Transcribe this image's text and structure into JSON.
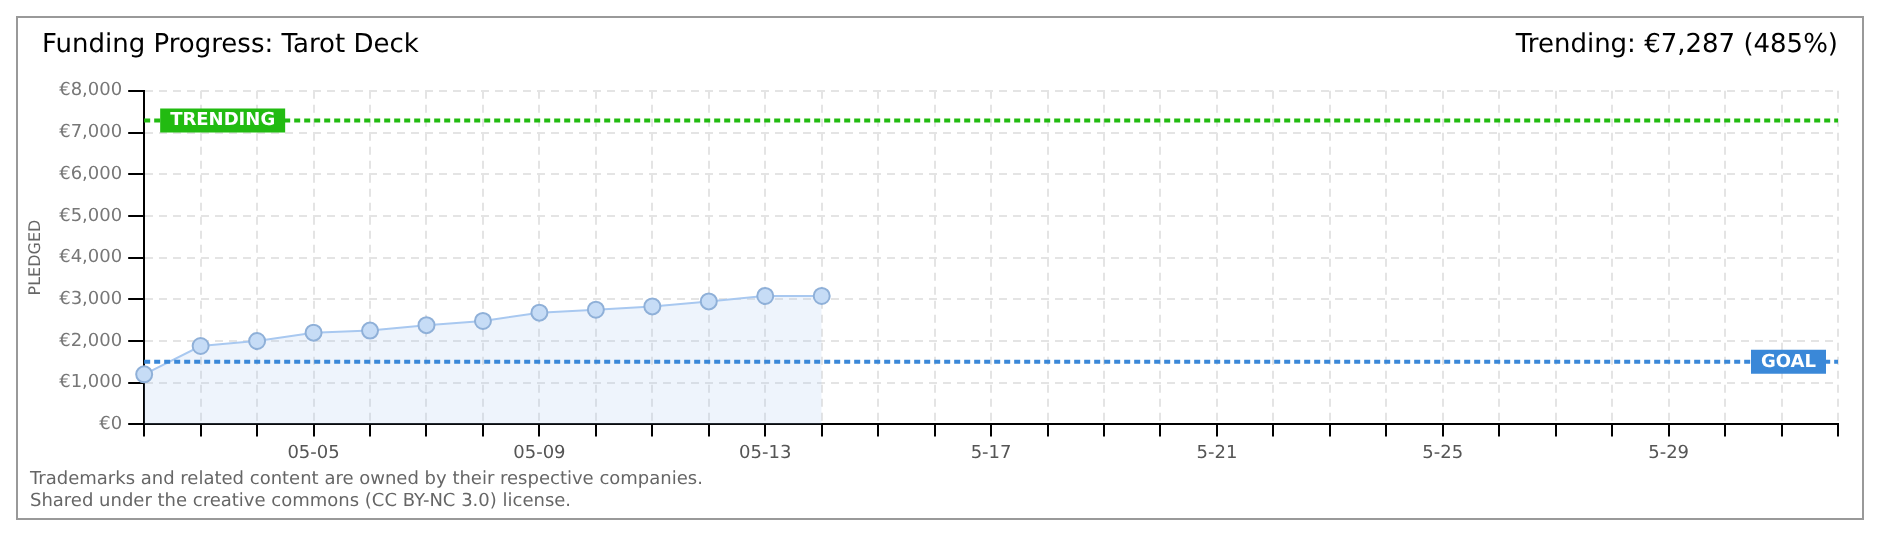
{
  "chart_data": {
    "type": "area",
    "title": "Funding Progress: Tarot Deck",
    "subtitle": "Trending: €7,287 (485%)",
    "ylabel": "PLEDGED",
    "categories": [
      null,
      null,
      null,
      "05-05",
      null,
      null,
      null,
      "05-09",
      null,
      null,
      null,
      "05-13",
      null,
      null,
      null,
      "5-17",
      null,
      null,
      null,
      "5-21",
      null,
      null,
      null,
      "5-25",
      null,
      null,
      null,
      "5-29",
      null,
      null,
      null
    ],
    "series": [
      {
        "color": "#a8c8f0",
        "values": [
          1200,
          1880,
          2000,
          2200,
          2250,
          2380,
          2480,
          2680,
          2750,
          2830,
          2950,
          3080,
          3080,
          null,
          null,
          null,
          null,
          null,
          null,
          null,
          null,
          null,
          null,
          null,
          null,
          null,
          null,
          null,
          null,
          null,
          null
        ]
      }
    ],
    "ylim": [
      0,
      8000
    ],
    "yticks": [
      {
        "value": 0,
        "label": "€0"
      },
      {
        "value": 1000,
        "label": "€1,000"
      },
      {
        "value": 2000,
        "label": "€2,000"
      },
      {
        "value": 3000,
        "label": "€3,000"
      },
      {
        "value": 4000,
        "label": "€4,000"
      },
      {
        "value": 5000,
        "label": "€5,000"
      },
      {
        "value": 6000,
        "label": "€6,000"
      },
      {
        "value": 7000,
        "label": "€7,000"
      },
      {
        "value": 8000,
        "label": "€8,000"
      }
    ],
    "ref_lines": [
      {
        "axis": "y",
        "value": 7287,
        "label": "TRENDING",
        "color": "#22bb11",
        "line_style": "dotted"
      },
      {
        "axis": "y",
        "value": 1500,
        "label": "GOAL",
        "color": "#3a88d8",
        "line_style": "dotted"
      }
    ],
    "grid": true,
    "marker": "circle",
    "legend": false,
    "annotations": [
      "Trademarks and related content are owned by their respective companies.",
      "Shared under the creative commons (CC BY-NC 3.0) license."
    ]
  }
}
